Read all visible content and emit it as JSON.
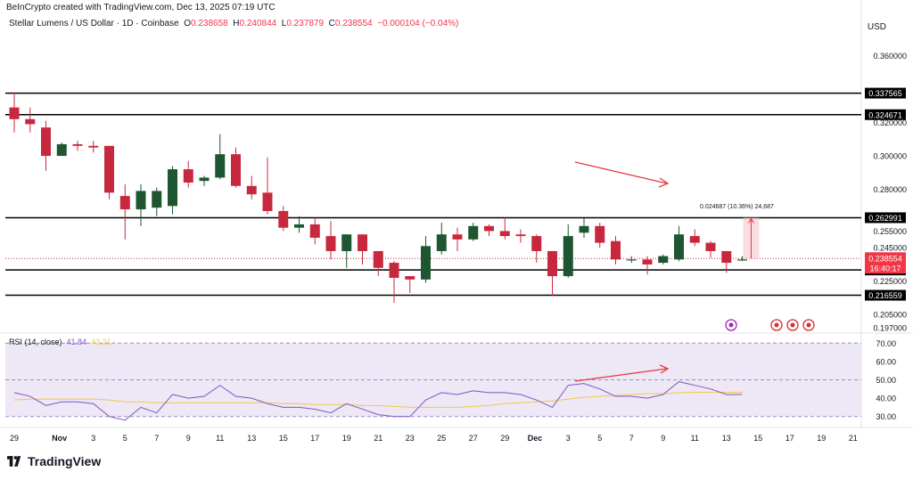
{
  "header": {
    "credit": "BeInCrypto created with TradingView.com, Dec 13, 2025 07:19 UTC",
    "symbol": "Stellar Lumens / US Dollar · 1D · Coinbase",
    "o_label": "O",
    "o": "0.238658",
    "h_label": "H",
    "h": "0.240844",
    "l_label": "L",
    "l": "0.237879",
    "c_label": "C",
    "c": "0.238554",
    "change": "−0.000104 (−0.04%)",
    "currency": "USD"
  },
  "brand": {
    "logo_text": "TradingView",
    "logo_icon": "tradingview-logo-icon"
  },
  "colors": {
    "up": "#1e5631",
    "down": "#c8283d",
    "rsi": "#7e57c2",
    "rsi_ma": "#f2c94c",
    "annotation": "#e53945",
    "level": "#000000",
    "rsi_band": "#ede7f6"
  },
  "chart_data": [
    {
      "type": "candlestick",
      "ylim": [
        0.195,
        0.372
      ],
      "y_ticks": [
        "0.360000",
        "0.320000",
        "0.300000",
        "0.280000",
        "0.255000",
        "0.245000",
        "0.225000",
        "0.205000",
        "0.197000"
      ],
      "y_tick_values": [
        0.36,
        0.32,
        0.3,
        0.28,
        0.255,
        0.245,
        0.225,
        0.205,
        0.197
      ],
      "x_ticks": [
        "29",
        "Nov",
        "3",
        "5",
        "7",
        "9",
        "11",
        "13",
        "15",
        "17",
        "19",
        "21",
        "23",
        "25",
        "27",
        "29",
        "Dec",
        "3",
        "5",
        "7",
        "9",
        "11",
        "13",
        "15",
        "17",
        "19",
        "21"
      ],
      "x_tick_index": [
        0,
        2.85,
        5,
        7,
        9,
        11,
        13,
        15,
        17,
        19,
        21,
        23,
        25,
        27,
        29,
        31,
        32.9,
        35,
        37,
        39,
        41,
        43,
        45,
        47,
        49,
        51,
        53
      ],
      "horizontal_levels": [
        {
          "value": 0.337565,
          "label": "0.337565"
        },
        {
          "value": 0.324671,
          "label": "0.324671"
        },
        {
          "value": 0.262991,
          "label": "0.262991"
        },
        {
          "value": 0.231708,
          "label": "0.231708"
        },
        {
          "value": 0.216559,
          "label": "0.216559"
        }
      ],
      "last_price": {
        "value": 0.238554,
        "label": "0.238554",
        "countdown": "16:40:17"
      },
      "measure_label": "0.024687 (10.36%) 24,687",
      "candles": [
        [
          0.329,
          0.322,
          0.338,
          0.314
        ],
        [
          0.322,
          0.319,
          0.329,
          0.314
        ],
        [
          0.317,
          0.3,
          0.321,
          0.291
        ],
        [
          0.3,
          0.307,
          0.308,
          0.3
        ],
        [
          0.307,
          0.306,
          0.309,
          0.303
        ],
        [
          0.306,
          0.305,
          0.309,
          0.302
        ],
        [
          0.306,
          0.278,
          0.306,
          0.274
        ],
        [
          0.276,
          0.268,
          0.283,
          0.25
        ],
        [
          0.268,
          0.279,
          0.283,
          0.258
        ],
        [
          0.269,
          0.279,
          0.281,
          0.264
        ],
        [
          0.27,
          0.292,
          0.294,
          0.265
        ],
        [
          0.292,
          0.284,
          0.297,
          0.281
        ],
        [
          0.285,
          0.287,
          0.288,
          0.282
        ],
        [
          0.287,
          0.301,
          0.313,
          0.286
        ],
        [
          0.301,
          0.282,
          0.305,
          0.281
        ],
        [
          0.282,
          0.277,
          0.288,
          0.274
        ],
        [
          0.278,
          0.267,
          0.299,
          0.265
        ],
        [
          0.267,
          0.257,
          0.27,
          0.255
        ],
        [
          0.257,
          0.259,
          0.264,
          0.254
        ],
        [
          0.259,
          0.251,
          0.263,
          0.247
        ],
        [
          0.252,
          0.243,
          0.261,
          0.238
        ],
        [
          0.243,
          0.253,
          0.253,
          0.233
        ],
        [
          0.253,
          0.243,
          0.253,
          0.235
        ],
        [
          0.243,
          0.233,
          0.243,
          0.228
        ],
        [
          0.236,
          0.227,
          0.237,
          0.212
        ],
        [
          0.228,
          0.226,
          0.228,
          0.218
        ],
        [
          0.226,
          0.246,
          0.252,
          0.224
        ],
        [
          0.243,
          0.253,
          0.26,
          0.241
        ],
        [
          0.253,
          0.25,
          0.257,
          0.243
        ],
        [
          0.25,
          0.258,
          0.26,
          0.249
        ],
        [
          0.258,
          0.255,
          0.259,
          0.252
        ],
        [
          0.255,
          0.252,
          0.263,
          0.25
        ],
        [
          0.253,
          0.252,
          0.256,
          0.248
        ],
        [
          0.252,
          0.243,
          0.253,
          0.236
        ],
        [
          0.243,
          0.228,
          0.243,
          0.216
        ],
        [
          0.228,
          0.252,
          0.259,
          0.227
        ],
        [
          0.254,
          0.258,
          0.263,
          0.251
        ],
        [
          0.258,
          0.248,
          0.26,
          0.245
        ],
        [
          0.249,
          0.238,
          0.252,
          0.235
        ],
        [
          0.238,
          0.238,
          0.24,
          0.236
        ],
        [
          0.238,
          0.235,
          0.24,
          0.229
        ],
        [
          0.236,
          0.24,
          0.241,
          0.235
        ],
        [
          0.238,
          0.253,
          0.258,
          0.237
        ],
        [
          0.252,
          0.248,
          0.256,
          0.246
        ],
        [
          0.248,
          0.243,
          0.249,
          0.239
        ],
        [
          0.243,
          0.236,
          0.242,
          0.23
        ],
        [
          0.238,
          0.238,
          0.24,
          0.237
        ]
      ]
    },
    {
      "type": "line",
      "title": "RSI (14, close)",
      "values_label": [
        "41.84",
        "43.21"
      ],
      "ylim": [
        25,
        75
      ],
      "y_ticks": [
        "70.00",
        "60.00",
        "50.00",
        "40.00",
        "30.00"
      ],
      "y_tick_values": [
        70,
        60,
        50,
        40,
        30
      ],
      "bands": [
        70,
        50,
        30
      ],
      "series": [
        {
          "values": [
            43,
            41,
            36,
            38,
            38,
            37,
            30,
            28,
            35,
            32,
            42,
            40,
            41,
            47,
            41,
            40,
            37,
            35,
            35,
            34,
            32,
            37,
            34,
            31,
            30,
            30,
            39,
            43,
            42,
            44,
            43,
            43,
            42,
            39,
            35,
            47,
            48,
            45,
            41,
            41,
            40,
            42,
            49,
            47,
            45,
            42,
            42
          ]
        },
        {
          "values": [
            39,
            39.5,
            39.5,
            39.5,
            39.5,
            39.5,
            39,
            38,
            38,
            37.5,
            37.5,
            37.5,
            37.5,
            37.5,
            37.5,
            37.5,
            37.5,
            37,
            37,
            36.5,
            36.5,
            36.5,
            36,
            36,
            35.5,
            35,
            35,
            35,
            35,
            35.5,
            36,
            37,
            37.5,
            38,
            38.5,
            39.5,
            40.5,
            41,
            41.5,
            42,
            42.5,
            42.5,
            43,
            43.2,
            43.21,
            43.2,
            43.2
          ]
        }
      ]
    }
  ]
}
